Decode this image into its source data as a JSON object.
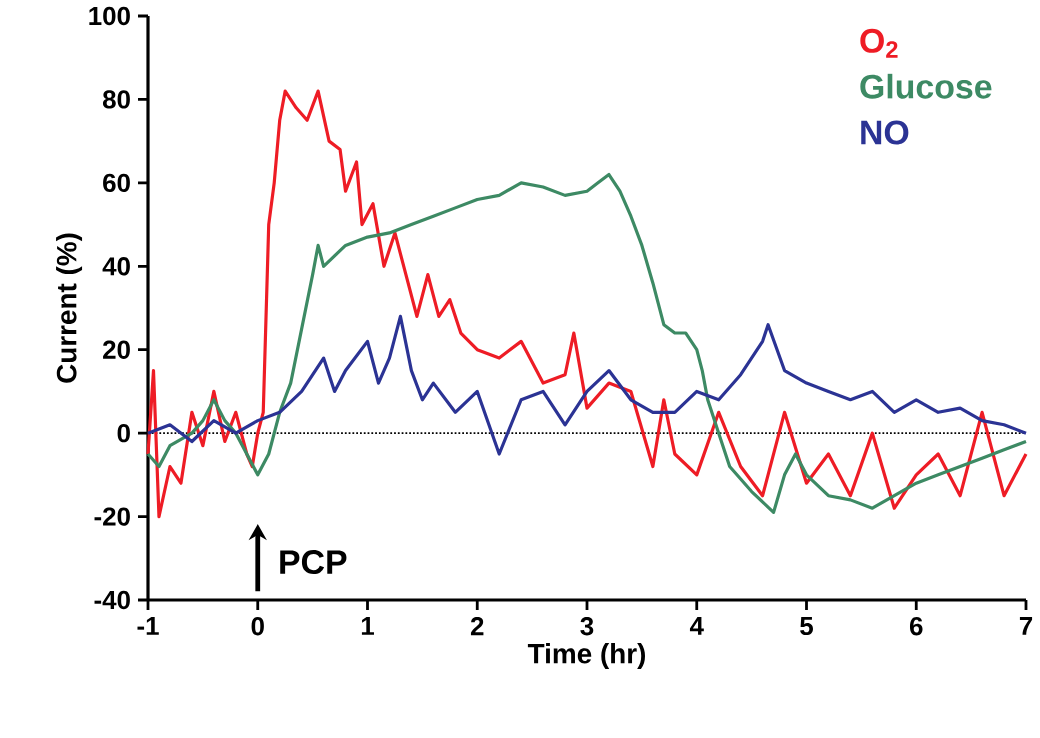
{
  "chart_data": {
    "type": "line",
    "xlabel": "Time (hr)",
    "ylabel": "Current (%)",
    "xlim": [
      -1,
      7
    ],
    "ylim": [
      -40,
      100
    ],
    "xticks": [
      -1,
      0,
      1,
      2,
      3,
      4,
      5,
      6,
      7
    ],
    "yticks": [
      -40,
      -20,
      0,
      20,
      40,
      60,
      80,
      100
    ],
    "grid": false,
    "legend": "top right",
    "marker": "none",
    "line_style": "solid",
    "ref_lines": [
      {
        "axis": "y",
        "value": 0,
        "color": "#000000",
        "line_style": "dotted"
      }
    ],
    "annotations": [
      "PCP"
    ],
    "series": [
      {
        "name": "O$_{2}$",
        "color": "#ee1c25",
        "x": [
          -1,
          -0.95,
          -0.9,
          -0.8,
          -0.7,
          -0.6,
          -0.5,
          -0.4,
          -0.3,
          -0.2,
          -0.1,
          -0.05,
          0,
          0.05,
          0.1,
          0.15,
          0.2,
          0.25,
          0.35,
          0.45,
          0.55,
          0.65,
          0.75,
          0.8,
          0.9,
          0.95,
          1.05,
          1.15,
          1.25,
          1.35,
          1.45,
          1.55,
          1.65,
          1.75,
          1.85,
          2.0,
          2.2,
          2.4,
          2.6,
          2.8,
          2.88,
          3.0,
          3.2,
          3.4,
          3.6,
          3.7,
          3.8,
          4.0,
          4.2,
          4.4,
          4.6,
          4.8,
          5.0,
          5.2,
          5.4,
          5.6,
          5.8,
          6.0,
          6.2,
          6.4,
          6.6,
          6.8,
          7.0
        ],
        "values": [
          -5,
          15,
          -20,
          -8,
          -12,
          5,
          -3,
          10,
          -2,
          5,
          -5,
          -8,
          0,
          5,
          50,
          60,
          75,
          82,
          78,
          75,
          82,
          70,
          68,
          58,
          65,
          50,
          55,
          40,
          48,
          38,
          28,
          38,
          28,
          32,
          24,
          20,
          18,
          22,
          12,
          14,
          24,
          6,
          12,
          10,
          -8,
          8,
          -5,
          -10,
          5,
          -8,
          -15,
          5,
          -12,
          -5,
          -15,
          0,
          -18,
          -10,
          -5,
          -15,
          5,
          -15,
          -5
        ]
      },
      {
        "name": "Glucose",
        "color": "#3d8a64",
        "x": [
          -1,
          -0.9,
          -0.8,
          -0.6,
          -0.5,
          -0.4,
          -0.3,
          -0.2,
          -0.1,
          0,
          0.1,
          0.2,
          0.3,
          0.4,
          0.5,
          0.55,
          0.6,
          0.8,
          1.0,
          1.2,
          1.4,
          1.6,
          1.8,
          2.0,
          2.2,
          2.4,
          2.6,
          2.8,
          3.0,
          3.1,
          3.2,
          3.3,
          3.4,
          3.5,
          3.6,
          3.7,
          3.8,
          3.9,
          4.0,
          4.05,
          4.1,
          4.2,
          4.3,
          4.5,
          4.7,
          4.8,
          4.9,
          5.0,
          5.2,
          5.4,
          5.6,
          5.8,
          6.0,
          6.2,
          6.4,
          6.6,
          6.8,
          7.0
        ],
        "values": [
          -5,
          -8,
          -3,
          0,
          3,
          8,
          3,
          0,
          -5,
          -10,
          -5,
          5,
          12,
          25,
          38,
          45,
          40,
          45,
          47,
          48,
          50,
          52,
          54,
          56,
          57,
          60,
          59,
          57,
          58,
          60,
          62,
          58,
          52,
          45,
          36,
          26,
          24,
          24,
          20,
          15,
          8,
          0,
          -8,
          -14,
          -19,
          -10,
          -5,
          -10,
          -15,
          -16,
          -18,
          -15,
          -12,
          -10,
          -8,
          -6,
          -4,
          -2
        ]
      },
      {
        "name": "NO",
        "color": "#2b3394",
        "x": [
          -1,
          -0.8,
          -0.6,
          -0.4,
          -0.2,
          0,
          0.2,
          0.4,
          0.6,
          0.7,
          0.8,
          1.0,
          1.1,
          1.2,
          1.3,
          1.4,
          1.5,
          1.6,
          1.8,
          2.0,
          2.2,
          2.4,
          2.6,
          2.8,
          3.0,
          3.2,
          3.4,
          3.6,
          3.8,
          4.0,
          4.2,
          4.4,
          4.6,
          4.65,
          4.8,
          5.0,
          5.2,
          5.4,
          5.6,
          5.8,
          6.0,
          6.2,
          6.4,
          6.6,
          6.8,
          7.0
        ],
        "values": [
          0,
          2,
          -2,
          3,
          0,
          3,
          5,
          10,
          18,
          10,
          15,
          22,
          12,
          18,
          28,
          15,
          8,
          12,
          5,
          10,
          -5,
          8,
          10,
          2,
          10,
          15,
          8,
          5,
          5,
          10,
          8,
          14,
          22,
          26,
          15,
          12,
          10,
          8,
          10,
          5,
          8,
          5,
          6,
          3,
          2,
          0
        ]
      }
    ]
  }
}
